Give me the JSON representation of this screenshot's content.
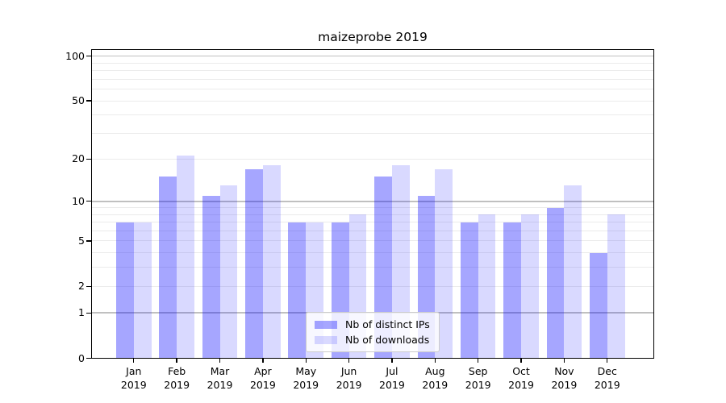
{
  "figure": {
    "title": "maizeprobe 2019"
  },
  "chart_data": {
    "type": "bar",
    "title": "maizeprobe 2019",
    "xlabel": "",
    "ylabel": "",
    "categories": [
      {
        "month": "Jan",
        "year": "2019"
      },
      {
        "month": "Feb",
        "year": "2019"
      },
      {
        "month": "Mar",
        "year": "2019"
      },
      {
        "month": "Apr",
        "year": "2019"
      },
      {
        "month": "May",
        "year": "2019"
      },
      {
        "month": "Jun",
        "year": "2019"
      },
      {
        "month": "Jul",
        "year": "2019"
      },
      {
        "month": "Aug",
        "year": "2019"
      },
      {
        "month": "Sep",
        "year": "2019"
      },
      {
        "month": "Oct",
        "year": "2019"
      },
      {
        "month": "Nov",
        "year": "2019"
      },
      {
        "month": "Dec",
        "year": "2019"
      }
    ],
    "series": [
      {
        "name": "Nb of distinct IPs",
        "color": "rgba(0,0,255,0.35)",
        "values": [
          7,
          15,
          11,
          17,
          7,
          7,
          15,
          11,
          7,
          7,
          9,
          4
        ]
      },
      {
        "name": "Nb of downloads",
        "color": "rgba(0,0,255,0.15)",
        "values": [
          7,
          21,
          13,
          18,
          7,
          8,
          18,
          17,
          8,
          8,
          13,
          8
        ]
      }
    ],
    "y_axis": {
      "scale": "log1p",
      "tick_values": [
        0,
        1,
        2,
        5,
        10,
        20,
        50,
        100
      ],
      "tick_labels": [
        "0",
        "1",
        "2",
        "5",
        "10",
        "20",
        "50",
        "100"
      ],
      "decade_gridlines": [
        1,
        10,
        100
      ],
      "minor_gridlines": [
        2,
        3,
        4,
        5,
        6,
        7,
        8,
        9,
        20,
        30,
        40,
        50,
        60,
        70,
        80,
        90
      ],
      "ylim": [
        0,
        112
      ]
    },
    "grid": true,
    "legend_position": "lower center"
  },
  "colors": {
    "background": "#ffffff",
    "axis": "#000000",
    "decade_gridline": "#c0c0c0",
    "minor_gridline": "#ebebeb",
    "bar_distinct_ips": "rgba(0,0,255,0.35)",
    "bar_downloads": "rgba(0,0,255,0.15)",
    "legend_border": "#cccccc"
  }
}
